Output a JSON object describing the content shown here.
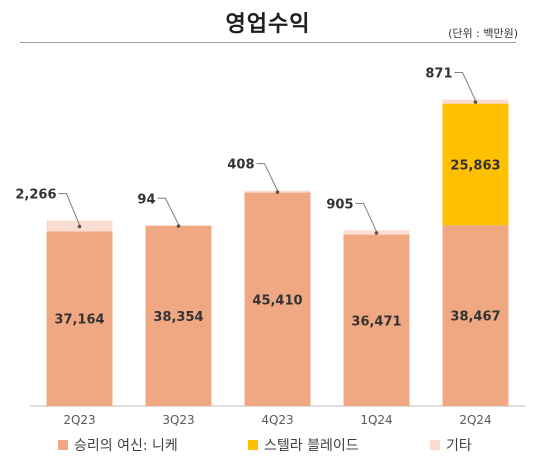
{
  "title": "영업수익",
  "unit_label": "(단위 : 백만원)",
  "colors": {
    "nickel": "#f0a883",
    "blade": "#ffc000",
    "other": "#fbdcd0",
    "label": "#333333"
  },
  "chart_data": {
    "type": "bar",
    "stacked": true,
    "title": "영업수익",
    "categories": [
      "2Q23",
      "3Q23",
      "4Q23",
      "1Q24",
      "2Q24"
    ],
    "series": [
      {
        "name": "승리의 여신: 니케",
        "values": [
          37164,
          38354,
          45410,
          36471,
          38467
        ],
        "labels": [
          "37,164",
          "38,354",
          "45,410",
          "36,471",
          "38,467"
        ]
      },
      {
        "name": "스텔라 블레이드",
        "values": [
          0,
          0,
          0,
          0,
          25863
        ],
        "labels": [
          "",
          "",
          "",
          "",
          "25,863"
        ]
      },
      {
        "name": "기타",
        "values": [
          2266,
          94,
          408,
          905,
          871
        ],
        "labels": [
          "2,266",
          "94",
          "408",
          "905",
          "871"
        ]
      }
    ],
    "ylim": [
      0,
      68000
    ],
    "grid": false,
    "legend_position": "bottom"
  }
}
